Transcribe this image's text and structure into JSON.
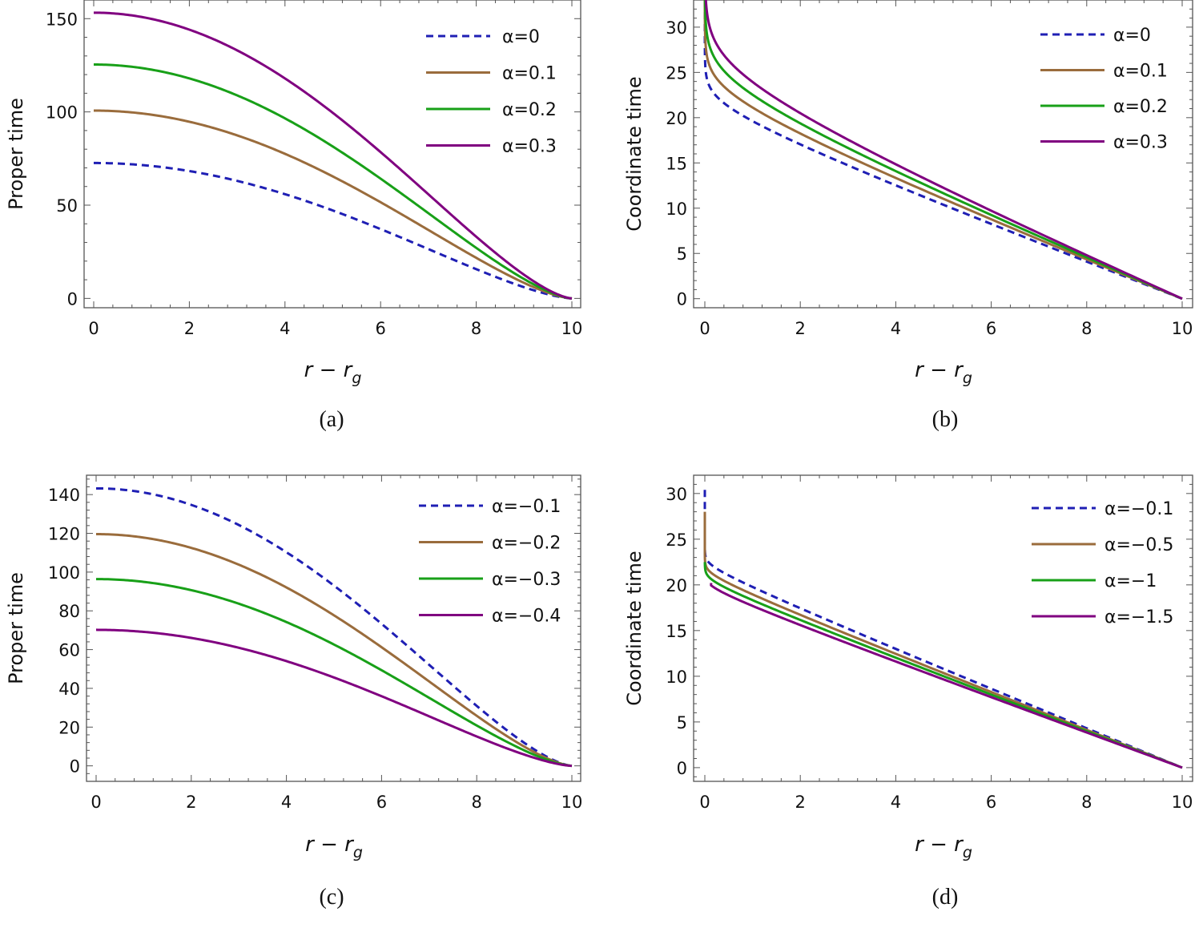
{
  "chart_data": [
    {
      "panel": "a",
      "type": "line",
      "caption": "(a)",
      "ylabel": "Proper time",
      "xlabel": {
        "main": "r − r",
        "sub": "g"
      },
      "xlim": [
        0,
        10
      ],
      "ylim": [
        -5,
        160
      ],
      "xticks": [
        0,
        2,
        4,
        6,
        8,
        10
      ],
      "yticks": [
        0,
        50,
        100,
        150
      ],
      "grid": false,
      "legend": "top-right",
      "series": [
        {
          "name": "α=0",
          "color": "#1f1fb4",
          "dashed": true,
          "shape": "power",
          "y0": 72.6,
          "yEnd": 0,
          "p": 1.5
        },
        {
          "name": "α=0.1",
          "color": "#9a6c3c",
          "dashed": false,
          "shape": "power",
          "y0": 100.7,
          "yEnd": 0,
          "p": 1.5
        },
        {
          "name": "α=0.2",
          "color": "#18a018",
          "dashed": false,
          "shape": "power",
          "y0": 125.4,
          "yEnd": 0,
          "p": 1.5
        },
        {
          "name": "α=0.3",
          "color": "#800080",
          "dashed": false,
          "shape": "power",
          "y0": 153.2,
          "yEnd": 0,
          "p": 1.5
        }
      ]
    },
    {
      "panel": "b",
      "type": "line",
      "caption": "(b)",
      "ylabel": "Coordinate time",
      "xlabel": {
        "main": "r − r",
        "sub": "g"
      },
      "xlim": [
        0,
        10
      ],
      "ylim": [
        -1,
        33
      ],
      "xticks": [
        0,
        2,
        4,
        6,
        8,
        10
      ],
      "yticks": [
        0,
        5,
        10,
        15,
        20,
        25,
        30
      ],
      "grid": false,
      "legend": "top-right",
      "series": [
        {
          "name": "α=0",
          "color": "#1f1fb4",
          "dashed": true,
          "shape": "log",
          "b": 19.5,
          "a": 0.9,
          "yTop": 33,
          "yEnd": 0
        },
        {
          "name": "α=0.1",
          "color": "#9a6c3c",
          "dashed": false,
          "shape": "log",
          "b": 20.4,
          "a": 1.2,
          "yTop": 33,
          "yEnd": 0
        },
        {
          "name": "α=0.2",
          "color": "#18a018",
          "dashed": false,
          "shape": "log",
          "b": 21.2,
          "a": 1.5,
          "yTop": 33,
          "yEnd": 0
        },
        {
          "name": "α=0.3",
          "color": "#800080",
          "dashed": false,
          "shape": "log",
          "b": 22.0,
          "a": 1.8,
          "yTop": 33,
          "yEnd": 0
        }
      ]
    },
    {
      "panel": "c",
      "type": "line",
      "caption": "(c)",
      "ylabel": "Proper time",
      "xlabel": {
        "main": "r − r",
        "sub": "g"
      },
      "xlim": [
        0,
        10
      ],
      "ylim": [
        -8,
        150
      ],
      "xticks": [
        0,
        2,
        4,
        6,
        8,
        10
      ],
      "yticks": [
        0,
        20,
        40,
        60,
        80,
        100,
        120,
        140
      ],
      "grid": false,
      "legend": "top-right",
      "series": [
        {
          "name": "α=−0.1",
          "color": "#1f1fb4",
          "dashed": true,
          "shape": "power",
          "y0": 143.2,
          "yEnd": 0,
          "p": 1.5
        },
        {
          "name": "α=−0.2",
          "color": "#9a6c3c",
          "dashed": false,
          "shape": "power",
          "y0": 119.6,
          "yEnd": 0,
          "p": 1.5
        },
        {
          "name": "α=−0.3",
          "color": "#18a018",
          "dashed": false,
          "shape": "power",
          "y0": 96.4,
          "yEnd": 0,
          "p": 1.5
        },
        {
          "name": "α=−0.4",
          "color": "#800080",
          "dashed": false,
          "shape": "power",
          "y0": 70.2,
          "yEnd": 0,
          "p": 1.5
        }
      ]
    },
    {
      "panel": "d",
      "type": "line",
      "caption": "(d)",
      "ylabel": "Coordinate time",
      "xlabel": {
        "main": "r − r",
        "sub": "g"
      },
      "xlim": [
        0,
        10
      ],
      "ylim": [
        -1.5,
        32
      ],
      "xticks": [
        0,
        2,
        4,
        6,
        8,
        10
      ],
      "yticks": [
        0,
        5,
        10,
        15,
        20,
        25,
        30
      ],
      "grid": false,
      "legend": "top-right",
      "series": [
        {
          "name": "α=−0.1",
          "color": "#1f1fb4",
          "dashed": true,
          "shape": "log",
          "b": 21.2,
          "a": 0.3,
          "yTop": 30.4,
          "yEnd": 0
        },
        {
          "name": "α=−0.5",
          "color": "#9a6c3c",
          "dashed": false,
          "shape": "log",
          "b": 20.3,
          "a": 0.3,
          "yTop": 28.0,
          "yEnd": 0
        },
        {
          "name": "α=−1",
          "color": "#18a018",
          "dashed": false,
          "shape": "log",
          "b": 19.6,
          "a": 0.3,
          "yTop": 22.5,
          "yEnd": 0
        },
        {
          "name": "α=−1.5",
          "color": "#800080",
          "dashed": false,
          "shape": "log",
          "b": 18.9,
          "a": 0.3,
          "yTop": 20.2,
          "yEnd": 0
        }
      ]
    }
  ]
}
